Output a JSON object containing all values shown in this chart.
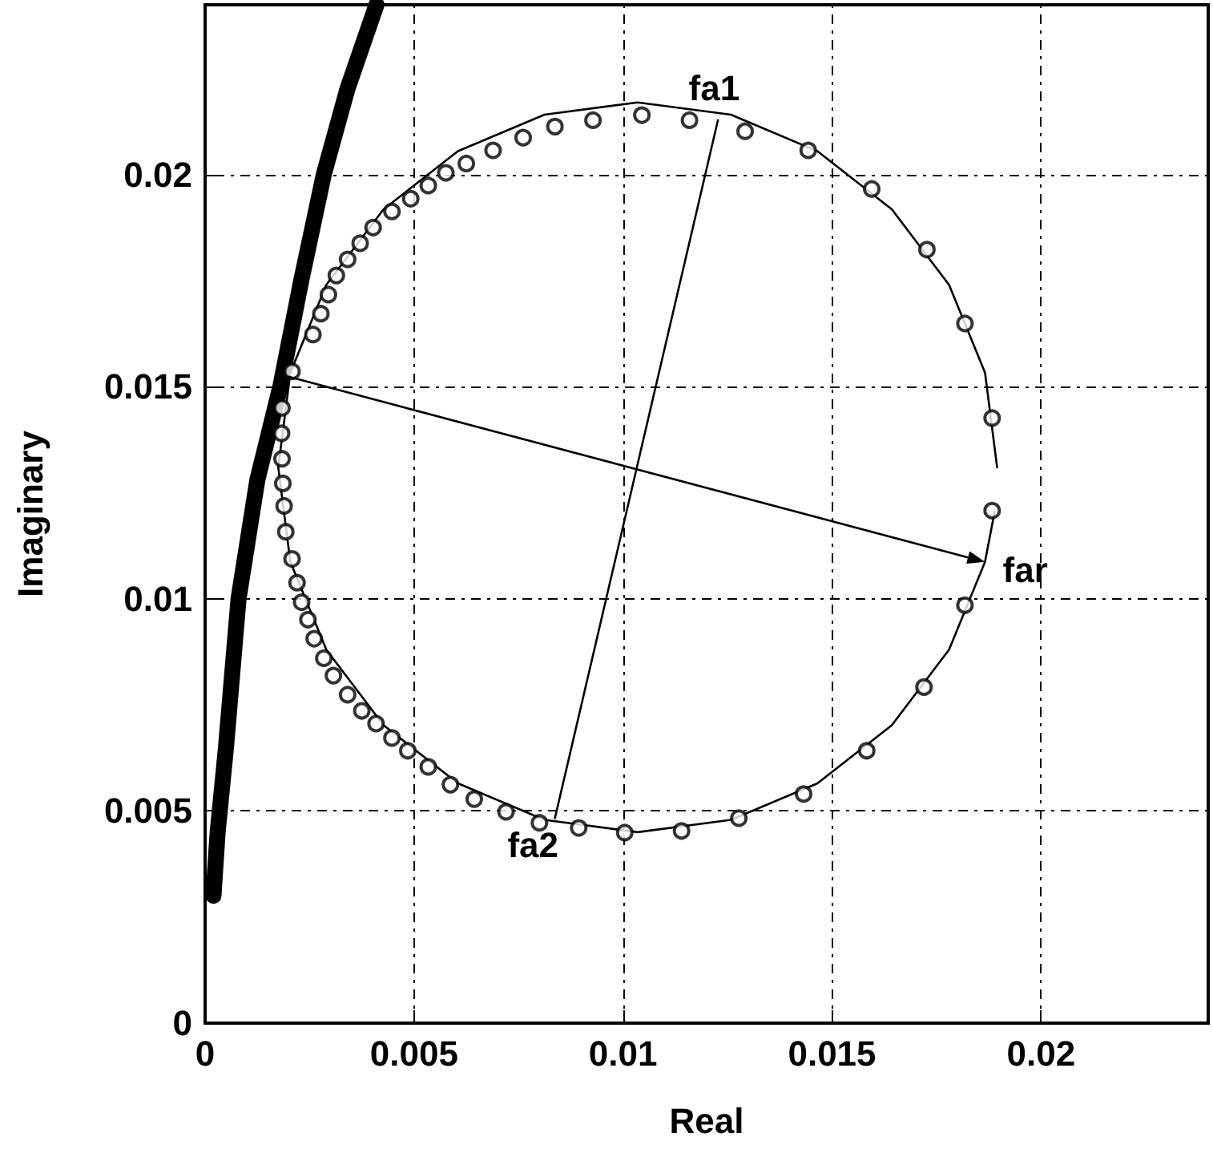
{
  "chart_data": {
    "type": "scatter",
    "xlabel": "Real",
    "ylabel": "Imaginary",
    "xlim": [
      0,
      0.024
    ],
    "ylim": [
      0,
      0.024
    ],
    "xticks": [
      0,
      0.005,
      0.01,
      0.015,
      0.02
    ],
    "yticks": [
      0,
      0.005,
      0.01,
      0.015,
      0.02
    ],
    "grid": true,
    "series": [
      {
        "type": "line",
        "color": "#000000",
        "marker": "none",
        "x": [
          0.0002,
          0.0003,
          0.0005,
          0.0008,
          0.00125,
          0.0018,
          0.0023,
          0.00284,
          0.0034,
          0.0041
        ],
        "values": [
          0.003,
          0.0045,
          0.0065,
          0.01,
          0.0128,
          0.015,
          0.0175,
          0.02,
          0.022,
          0.024
        ]
      },
      {
        "type": "line",
        "color": "#000000",
        "marker": "none",
        "x": [
          0.01895,
          0.01866,
          0.0178,
          0.01643,
          0.01465,
          0.01258,
          0.01035,
          0.00812,
          0.00605,
          0.00427,
          0.0029,
          0.00204,
          0.00175,
          0.00204,
          0.0029,
          0.00427,
          0.00605,
          0.00812,
          0.01035,
          0.01258,
          0.01465,
          0.01643,
          0.0178,
          0.01866,
          0.01889
        ],
        "values": [
          0.0131,
          0.01533,
          0.0174,
          0.01918,
          0.02055,
          0.02141,
          0.0217,
          0.02141,
          0.02055,
          0.01918,
          0.0174,
          0.01533,
          0.0131,
          0.01087,
          0.0088,
          0.00702,
          0.00565,
          0.00479,
          0.0045,
          0.00479,
          0.00565,
          0.00702,
          0.0088,
          0.01087,
          0.01205
        ]
      },
      {
        "type": "line",
        "color": "#000000",
        "marker": "none",
        "x": [
          0.01227,
          0.00837
        ],
        "values": [
          0.02128,
          0.00483
        ]
      },
      {
        "color": "#000000",
        "marker": "circle",
        "x": [
          0.01883,
          0.01883,
          0.01818,
          0.01727,
          0.01595,
          0.01443,
          0.01292,
          0.01159,
          0.01045,
          0.00928,
          0.00837,
          0.00761,
          0.00689,
          0.00625,
          0.00576,
          0.00534,
          0.00492,
          0.00447,
          0.00402,
          0.00371,
          0.00341,
          0.00314,
          0.00295,
          0.00277,
          0.00258,
          0.00208,
          0.00184,
          0.00183,
          0.00184,
          0.00186,
          0.00189,
          0.00193,
          0.00208,
          0.0022,
          0.00231,
          0.00246,
          0.00261,
          0.00284,
          0.00307,
          0.00341,
          0.00375,
          0.00409,
          0.00447,
          0.00485,
          0.00534,
          0.00587,
          0.00644,
          0.0072,
          0.008,
          0.00894,
          0.01004,
          0.0114,
          0.01277,
          0.01432,
          0.01583,
          0.0172,
          0.01818
        ],
        "values": [
          0.01208,
          0.01426,
          0.01649,
          0.01823,
          0.01966,
          0.02057,
          0.02102,
          0.02128,
          0.0214,
          0.02128,
          0.02113,
          0.02087,
          0.02057,
          0.02026,
          0.02004,
          0.01974,
          0.01943,
          0.01913,
          0.01875,
          0.01838,
          0.018,
          0.01762,
          0.01717,
          0.01672,
          0.01623,
          0.01536,
          0.0145,
          0.0139,
          0.0133,
          0.01272,
          0.01219,
          0.01158,
          0.01094,
          0.01038,
          0.00992,
          0.00951,
          0.00906,
          0.0086,
          0.00819,
          0.00774,
          0.00736,
          0.00706,
          0.00672,
          0.00642,
          0.00604,
          0.00562,
          0.00528,
          0.00498,
          0.00472,
          0.0046,
          0.00449,
          0.00453,
          0.00483,
          0.0054,
          0.00642,
          0.00792,
          0.00985
        ]
      }
    ],
    "annotations": [
      {
        "text": "fa1",
        "x": 0.01227,
        "y": 0.02128
      },
      {
        "text": "fa2",
        "x": 0.00837,
        "y": 0.00483
      },
      {
        "text": "far",
        "x": 0.01866,
        "y": 0.01087
      }
    ]
  }
}
